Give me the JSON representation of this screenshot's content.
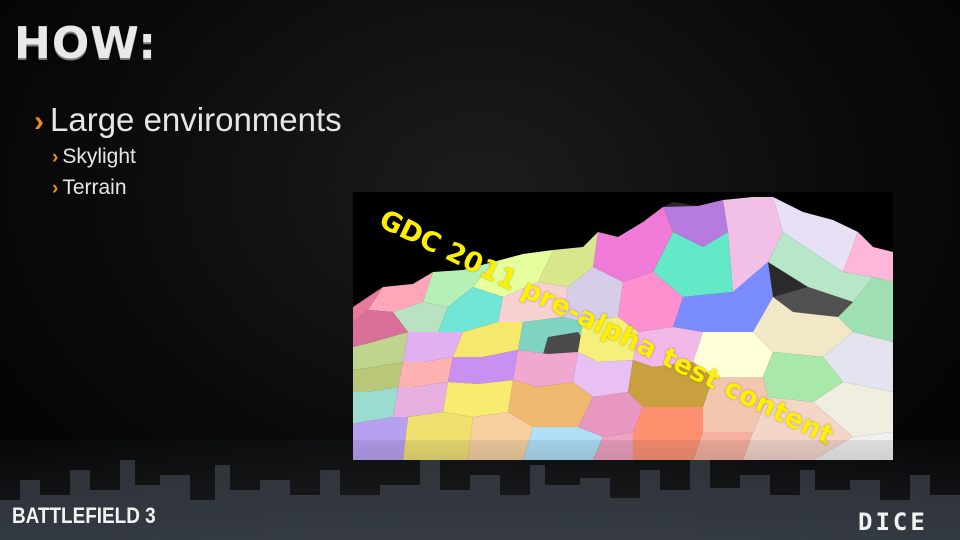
{
  "slide": {
    "title": "HOW:",
    "bullets": [
      {
        "marker": "›",
        "text": "Large environments"
      },
      {
        "marker": "›",
        "text": "Skylight"
      },
      {
        "marker": "›",
        "text": "Terrain"
      }
    ]
  },
  "figure": {
    "watermark": "GDC 2011 pre-alpha test content",
    "watermark_color": "#ffef00"
  },
  "footer": {
    "left_logo": "BATTLEFIELD 3",
    "right_logo": "DICE"
  },
  "colors": {
    "accent": "#f08a1c",
    "text": "#e6e6e6",
    "background": "#000000"
  }
}
